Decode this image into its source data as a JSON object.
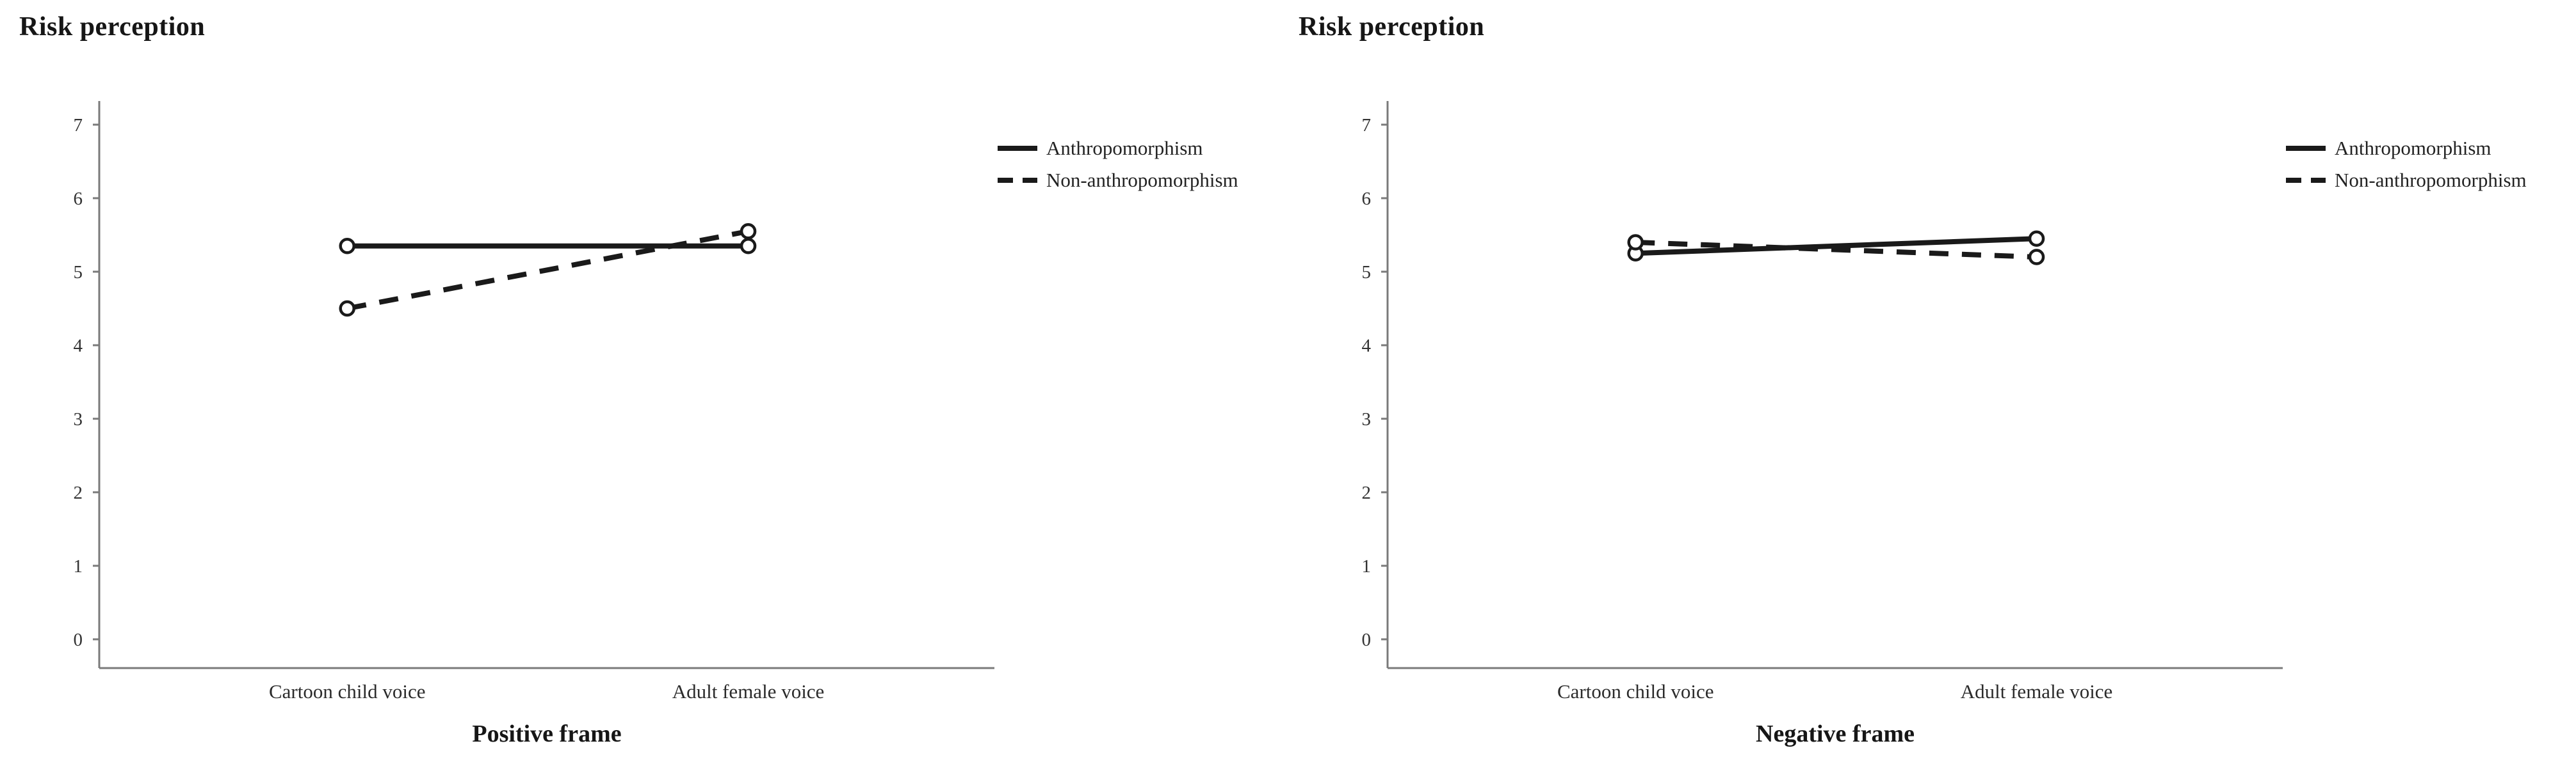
{
  "chart_data": [
    {
      "type": "line",
      "title": "Risk perception",
      "xlabel": "Positive frame",
      "ylabel": "",
      "categories": [
        "Cartoon child voice",
        "Adult female voice"
      ],
      "ylim": [
        0,
        7
      ],
      "yticks": [
        0,
        1,
        2,
        3,
        4,
        5,
        6,
        7
      ],
      "grid": false,
      "legend_position": "right-top",
      "series": [
        {
          "name": "Anthropomorphism",
          "line_style": "solid",
          "marker": "open-circle",
          "color": "#1a1a1a",
          "values": [
            5.35,
            5.35
          ]
        },
        {
          "name": "Non-anthropomorphism",
          "line_style": "dashed",
          "marker": "open-circle",
          "color": "#1a1a1a",
          "values": [
            4.5,
            5.55
          ]
        }
      ]
    },
    {
      "type": "line",
      "title": "Risk perception",
      "xlabel": "Negative frame",
      "ylabel": "",
      "categories": [
        "Cartoon child voice",
        "Adult female voice"
      ],
      "ylim": [
        0,
        7
      ],
      "yticks": [
        0,
        1,
        2,
        3,
        4,
        5,
        6,
        7
      ],
      "grid": false,
      "legend_position": "right-top",
      "series": [
        {
          "name": "Anthropomorphism",
          "line_style": "solid",
          "marker": "open-circle",
          "color": "#1a1a1a",
          "values": [
            5.25,
            5.45
          ]
        },
        {
          "name": "Non-anthropomorphism",
          "line_style": "dashed",
          "marker": "open-circle",
          "color": "#1a1a1a",
          "values": [
            5.4,
            5.2
          ]
        }
      ]
    }
  ],
  "colors": {
    "series_line": "#1a1a1a",
    "axis": "#7a7a7a",
    "tick_text": "#333333",
    "category_text": "#2b2b2b",
    "background": "#ffffff"
  }
}
